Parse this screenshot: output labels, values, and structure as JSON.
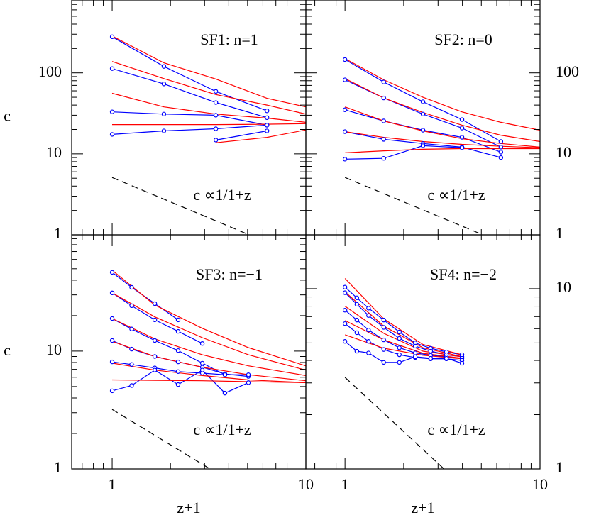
{
  "chart_data": [
    {
      "type": "line",
      "title": "SF1: n=1",
      "annotation": "c ∝1/1+z",
      "ylabel": "c",
      "log_x": true,
      "log_y": true,
      "xlim": [
        0.618,
        10
      ],
      "ylim": [
        1,
        794
      ],
      "xticks": [
        1,
        10
      ],
      "yticks": [
        1,
        10,
        100
      ],
      "xtick_labels": false,
      "ytick_side": "left",
      "minor_ticks": true,
      "series": [
        {
          "color": "#0000ff",
          "marker": true,
          "x": [
            1,
            1.85,
            3.43,
            6.3
          ],
          "values": [
            279,
            120,
            59,
            34
          ]
        },
        {
          "color": "#0000ff",
          "marker": true,
          "x": [
            1,
            1.85,
            3.43,
            6.3
          ],
          "values": [
            113,
            73,
            43,
            28
          ]
        },
        {
          "color": "#0000ff",
          "marker": true,
          "x": [
            1,
            1.85,
            3.43,
            6.3
          ],
          "values": [
            33,
            31,
            30,
            22.6
          ]
        },
        {
          "color": "#0000ff",
          "marker": true,
          "x": [
            1,
            1.85,
            3.43,
            6.3
          ],
          "values": [
            17.4,
            19.2,
            20.4,
            22.6
          ]
        },
        {
          "color": "#0000ff",
          "marker": true,
          "x": [
            3.43,
            6.3
          ],
          "values": [
            14.8,
            19.2
          ]
        },
        {
          "color": "#ff0000",
          "x": [
            1,
            1.85,
            3.43,
            6.3,
            10
          ],
          "values": [
            285,
            133,
            84,
            48.5,
            38
          ]
        },
        {
          "color": "#ff0000",
          "x": [
            1,
            1.85,
            3.43,
            6.3,
            10
          ],
          "values": [
            138,
            85,
            54,
            40,
            31
          ]
        },
        {
          "color": "#ff0000",
          "x": [
            1,
            1.85,
            3.43,
            6.3,
            10
          ],
          "values": [
            56,
            38,
            31,
            27.6,
            24.5
          ]
        },
        {
          "color": "#ff0000",
          "x": [
            1,
            1.85,
            3.43,
            6.3,
            10
          ],
          "values": [
            23,
            23,
            23,
            23.2,
            23.6
          ]
        },
        {
          "color": "#ff0000",
          "x": [
            3.43,
            6.3,
            10
          ],
          "values": [
            13.7,
            16,
            19.7
          ]
        },
        {
          "color": "#000000",
          "dash": true,
          "x": [
            1,
            5.1
          ],
          "values": [
            5.1,
            1
          ]
        }
      ]
    },
    {
      "type": "line",
      "title": "SF2: n=0",
      "annotation": "c ∝1/1+z",
      "log_x": true,
      "log_y": true,
      "xlim": [
        0.63,
        10
      ],
      "ylim": [
        1,
        794
      ],
      "xticks": [
        1,
        10
      ],
      "yticks": [
        1,
        10,
        100
      ],
      "xtick_labels": false,
      "ytick_side": "right",
      "minor_ticks": true,
      "series": [
        {
          "color": "#0000ff",
          "marker": true,
          "x": [
            1,
            1.58,
            2.51,
            3.98,
            6.3
          ],
          "values": [
            146,
            77,
            44,
            26.5,
            14.2
          ]
        },
        {
          "color": "#0000ff",
          "marker": true,
          "x": [
            1,
            1.58,
            2.51,
            3.98,
            6.3
          ],
          "values": [
            82,
            49,
            31,
            20.8,
            12.1
          ]
        },
        {
          "color": "#0000ff",
          "marker": true,
          "x": [
            1,
            1.58,
            2.51,
            3.98,
            6.3
          ],
          "values": [
            35,
            25.5,
            19.6,
            16,
            10.5
          ]
        },
        {
          "color": "#0000ff",
          "marker": true,
          "x": [
            1,
            1.58,
            2.51,
            3.98,
            6.3
          ],
          "values": [
            18.8,
            15.1,
            13.4,
            12.1,
            9
          ]
        },
        {
          "color": "#0000ff",
          "marker": true,
          "x": [
            1,
            1.58,
            2.51,
            3.98
          ],
          "values": [
            8.6,
            8.8,
            12.6,
            11.9
          ]
        },
        {
          "color": "#ff0000",
          "x": [
            1,
            1.58,
            2.51,
            3.98,
            6.3,
            10
          ],
          "values": [
            150,
            82,
            50,
            33,
            24.5,
            19.6
          ]
        },
        {
          "color": "#ff0000",
          "x": [
            1,
            1.58,
            2.51,
            3.98,
            6.3,
            10
          ],
          "values": [
            85,
            49,
            32.4,
            22.6,
            17,
            14.2
          ]
        },
        {
          "color": "#ff0000",
          "x": [
            1,
            1.58,
            2.51,
            3.98,
            6.3,
            10
          ],
          "values": [
            38,
            25.5,
            19.2,
            15.4,
            13.4,
            12.1
          ]
        },
        {
          "color": "#ff0000",
          "x": [
            1,
            1.58,
            2.51,
            3.98,
            6.3,
            10
          ],
          "values": [
            18.8,
            16,
            14.2,
            13.1,
            12.4,
            11.9
          ]
        },
        {
          "color": "#ff0000",
          "x": [
            1,
            1.58,
            2.51,
            3.98,
            6.3,
            10
          ],
          "values": [
            10.3,
            10.9,
            11.4,
            11.6,
            11.6,
            11.6
          ]
        },
        {
          "color": "#000000",
          "dash": true,
          "x": [
            1,
            5.1
          ],
          "values": [
            5.1,
            1
          ]
        }
      ]
    },
    {
      "type": "line",
      "title": "SF3: n=−1",
      "annotation": "c ∝1/1+z",
      "ylabel": "c",
      "xlabel": "z+1",
      "log_x": true,
      "log_y": true,
      "xlim": [
        0.618,
        10
      ],
      "ylim": [
        1,
        97
      ],
      "xticks": [
        1,
        10
      ],
      "yticks": [
        1,
        10
      ],
      "xtick_labels": true,
      "ytick_side": "left",
      "minor_ticks": true,
      "series": [
        {
          "color": "#0000ff",
          "marker": true,
          "x": [
            1,
            1.26,
            1.66,
            2.19
          ],
          "values": [
            46.6,
            34.8,
            25.3,
            18.4
          ]
        },
        {
          "color": "#0000ff",
          "marker": true,
          "x": [
            1,
            1.26,
            1.66,
            2.19,
            2.92
          ],
          "values": [
            31.2,
            24.3,
            18.4,
            14.7,
            11.6
          ]
        },
        {
          "color": "#0000ff",
          "marker": true,
          "x": [
            1,
            1.26,
            1.66,
            2.19,
            2.92,
            3.82
          ],
          "values": [
            18.9,
            15.4,
            12.3,
            10.1,
            7.9,
            6.3
          ]
        },
        {
          "color": "#0000ff",
          "marker": true,
          "x": [
            1,
            1.26,
            1.66,
            2.19,
            2.92,
            3.82,
            5.05
          ],
          "values": [
            12.3,
            10.4,
            9,
            8.1,
            7.3,
            6.4,
            6.1
          ]
        },
        {
          "color": "#0000ff",
          "marker": true,
          "x": [
            1,
            1.26,
            1.66,
            2.19,
            2.92,
            3.82,
            5.05
          ],
          "values": [
            8.1,
            7.7,
            7.2,
            6.7,
            6.5,
            6.3,
            6.3
          ]
        },
        {
          "color": "#0000ff",
          "marker": true,
          "x": [
            1,
            1.26,
            1.66,
            2.19,
            2.92,
            3.82,
            5.05
          ],
          "values": [
            4.6,
            5.1,
            6.9,
            5.2,
            6.9,
            4.4,
            5.4
          ]
        },
        {
          "color": "#ff0000",
          "x": [
            1,
            1.66,
            2.92,
            5.05,
            10
          ],
          "values": [
            48.6,
            24.6,
            15.6,
            10.7,
            7.5
          ]
        },
        {
          "color": "#ff0000",
          "x": [
            1,
            1.66,
            2.92,
            5.05,
            10
          ],
          "values": [
            31.2,
            19.5,
            13,
            9.3,
            6.9
          ]
        },
        {
          "color": "#ff0000",
          "x": [
            1,
            1.66,
            2.92,
            5.05,
            10
          ],
          "values": [
            18.9,
            12.7,
            9.3,
            7.5,
            6.2
          ]
        },
        {
          "color": "#ff0000",
          "x": [
            1,
            1.66,
            2.92,
            5.05,
            10
          ],
          "values": [
            12.1,
            9,
            7.3,
            6.3,
            5.6
          ]
        },
        {
          "color": "#ff0000",
          "x": [
            1,
            1.66,
            2.92,
            5.05,
            10
          ],
          "values": [
            7.9,
            6.9,
            6.2,
            5.7,
            5.4
          ]
        },
        {
          "color": "#ff0000",
          "x": [
            1,
            1.66,
            2.92,
            5.05,
            10
          ],
          "values": [
            5.7,
            5.65,
            5.6,
            5.5,
            5.4
          ]
        },
        {
          "color": "#000000",
          "dash": true,
          "x": [
            1,
            3.2
          ],
          "values": [
            3.2,
            1
          ]
        }
      ]
    },
    {
      "type": "line",
      "title": "SF4: n=−2",
      "annotation": "c ∝1/1+z",
      "xlabel": "z+1",
      "log_x": true,
      "log_y": true,
      "xlim": [
        0.63,
        10
      ],
      "ylim": [
        1,
        19.9
      ],
      "xticks": [
        1,
        10
      ],
      "yticks": [
        1,
        10
      ],
      "xtick_labels": true,
      "ytick_side": "right",
      "minor_ticks": true,
      "series": [
        {
          "color": "#0000ff",
          "marker": true,
          "x": [
            1,
            1.15,
            1.32,
            1.58,
            1.9,
            2.29,
            2.75,
            3.31,
            3.98
          ],
          "values": [
            10.2,
            8.9,
            7.8,
            6.7,
            5.75,
            5,
            4.67,
            4.46,
            4.3
          ]
        },
        {
          "color": "#0000ff",
          "marker": true,
          "x": [
            1,
            1.15,
            1.32,
            1.58,
            1.9,
            2.29,
            2.75,
            3.31,
            3.98
          ],
          "values": [
            9.5,
            8.2,
            7.1,
            6.1,
            5.3,
            4.8,
            4.5,
            4.3,
            4.19
          ]
        },
        {
          "color": "#0000ff",
          "marker": true,
          "x": [
            1,
            1.15,
            1.32,
            1.58,
            1.9,
            2.29,
            2.75,
            3.31,
            3.98
          ],
          "values": [
            7.6,
            6.7,
            5.9,
            5.2,
            4.7,
            4.4,
            4.27,
            4.19,
            4.11
          ]
        },
        {
          "color": "#0000ff",
          "marker": true,
          "x": [
            1,
            1.15,
            1.32,
            1.58,
            1.9,
            2.29,
            2.75,
            3.31,
            3.98
          ],
          "values": [
            6.4,
            5.7,
            5.1,
            4.6,
            4.3,
            4.15,
            4.08,
            4.08,
            4
          ]
        },
        {
          "color": "#0000ff",
          "marker": true,
          "x": [
            1,
            1.15,
            1.32,
            1.58,
            1.9,
            2.29,
            2.75,
            3.31,
            3.98
          ],
          "values": [
            5.1,
            4.5,
            4.4,
            3.9,
            3.9,
            4.19,
            4.11,
            4.11,
            3.86
          ]
        },
        {
          "color": "#ff0000",
          "x": [
            1,
            1.58,
            2.51,
            3.98
          ],
          "values": [
            11.4,
            6.8,
            4.9,
            4.3
          ]
        },
        {
          "color": "#ff0000",
          "x": [
            1,
            1.58,
            2.51,
            3.98
          ],
          "values": [
            9.6,
            6.2,
            4.7,
            4.2
          ]
        },
        {
          "color": "#ff0000",
          "x": [
            1,
            1.58,
            2.51,
            3.98
          ],
          "values": [
            8,
            5.65,
            4.5,
            4.19
          ]
        },
        {
          "color": "#ff0000",
          "x": [
            1,
            1.58,
            2.51,
            3.98
          ],
          "values": [
            6.65,
            5.2,
            4.38,
            4.11
          ]
        },
        {
          "color": "#ff0000",
          "x": [
            1,
            1.58,
            2.51,
            3.98
          ],
          "values": [
            5.55,
            4.67,
            4.27,
            4.08
          ]
        },
        {
          "color": "#000000",
          "dash": true,
          "x": [
            1,
            3.22
          ],
          "values": [
            3.22,
            1
          ]
        }
      ]
    }
  ]
}
